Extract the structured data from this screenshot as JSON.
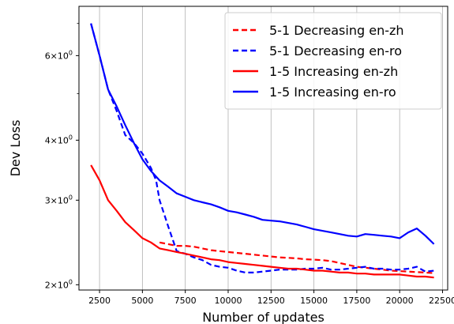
{
  "chart_data": {
    "type": "line",
    "xlabel": "Number of updates",
    "ylabel": "Dev Loss",
    "xlim": [
      1300,
      22800
    ],
    "ylim": [
      1.95,
      7.6
    ],
    "yscale": "log",
    "grid": "vertical",
    "legend_position": "top-right",
    "xticks": [
      {
        "value": 2500,
        "label": "2500"
      },
      {
        "value": 5000,
        "label": "5000"
      },
      {
        "value": 7500,
        "label": "7500"
      },
      {
        "value": 10000,
        "label": "10000"
      },
      {
        "value": 12500,
        "label": "12500"
      },
      {
        "value": 15000,
        "label": "15000"
      },
      {
        "value": 17500,
        "label": "17500"
      },
      {
        "value": 20000,
        "label": "20000"
      },
      {
        "value": 22500,
        "label": "22500"
      }
    ],
    "yticks": [
      {
        "value": 2,
        "base": "2×10",
        "exp": "0"
      },
      {
        "value": 3,
        "base": "3×10",
        "exp": "0"
      },
      {
        "value": 4,
        "base": "4×10",
        "exp": "0"
      },
      {
        "value": 6,
        "base": "6×10",
        "exp": "0"
      }
    ],
    "series": [
      {
        "name": "5-1 Decreasing en-zh",
        "color": "#ff0000",
        "dash": "dashed",
        "x": [
          6000,
          6500,
          7000,
          7500,
          8000,
          8500,
          9000,
          9500,
          10000,
          10500,
          11000,
          11500,
          12000,
          12500,
          13000,
          13500,
          14000,
          14500,
          15000,
          15500,
          16000,
          16500,
          17000,
          17500,
          18000,
          18500,
          19000,
          19500,
          20000,
          20500,
          21000,
          21500,
          22000
        ],
        "y": [
          2.45,
          2.43,
          2.41,
          2.41,
          2.4,
          2.38,
          2.36,
          2.35,
          2.34,
          2.33,
          2.32,
          2.31,
          2.3,
          2.29,
          2.28,
          2.275,
          2.27,
          2.26,
          2.255,
          2.25,
          2.24,
          2.22,
          2.2,
          2.18,
          2.17,
          2.16,
          2.15,
          2.14,
          2.135,
          2.13,
          2.125,
          2.12,
          2.115
        ]
      },
      {
        "name": "5-1 Decreasing en-ro",
        "color": "#0000ff",
        "dash": "dashed",
        "x": [
          2000,
          2500,
          3000,
          3500,
          4000,
          4500,
          5000,
          5500,
          5800,
          6000,
          6500,
          7000,
          7500,
          8000,
          8500,
          9000,
          9500,
          10000,
          10500,
          11000,
          11500,
          12000,
          12500,
          13000,
          13500,
          14000,
          14500,
          15000,
          15500,
          16000,
          16500,
          17000,
          17500,
          18000,
          18500,
          19000,
          19500,
          20000,
          20500,
          21000,
          21500,
          22000
        ],
        "y": [
          7.0,
          6.0,
          5.1,
          4.6,
          4.1,
          3.95,
          3.75,
          3.5,
          3.3,
          3.0,
          2.65,
          2.35,
          2.32,
          2.28,
          2.25,
          2.2,
          2.18,
          2.17,
          2.14,
          2.12,
          2.12,
          2.13,
          2.14,
          2.15,
          2.15,
          2.15,
          2.16,
          2.16,
          2.17,
          2.15,
          2.15,
          2.16,
          2.17,
          2.18,
          2.16,
          2.16,
          2.15,
          2.15,
          2.16,
          2.18,
          2.13,
          2.14
        ]
      },
      {
        "name": "1-5 Increasing en-zh",
        "color": "#ff0000",
        "dash": "solid",
        "x": [
          2000,
          2500,
          3000,
          3500,
          4000,
          4500,
          5000,
          5500,
          6000,
          6500,
          7000,
          7500,
          8000,
          8500,
          9000,
          9500,
          10000,
          10500,
          11000,
          11500,
          12000,
          12500,
          13000,
          13500,
          14000,
          14500,
          15000,
          15500,
          16000,
          16500,
          17000,
          17500,
          18000,
          18500,
          19000,
          19500,
          20000,
          20500,
          21000,
          21500,
          22000
        ],
        "y": [
          3.55,
          3.3,
          3.0,
          2.85,
          2.7,
          2.6,
          2.5,
          2.45,
          2.38,
          2.36,
          2.34,
          2.32,
          2.3,
          2.28,
          2.26,
          2.25,
          2.23,
          2.22,
          2.21,
          2.2,
          2.19,
          2.18,
          2.17,
          2.16,
          2.16,
          2.15,
          2.14,
          2.14,
          2.13,
          2.12,
          2.12,
          2.11,
          2.11,
          2.1,
          2.1,
          2.1,
          2.1,
          2.09,
          2.08,
          2.08,
          2.07
        ]
      },
      {
        "name": "1-5 Increasing en-ro",
        "color": "#0000ff",
        "dash": "solid",
        "x": [
          2000,
          2500,
          3000,
          3500,
          4000,
          4500,
          5000,
          5500,
          6000,
          6500,
          7000,
          7500,
          8000,
          8500,
          9000,
          9500,
          10000,
          10500,
          11000,
          11500,
          12000,
          12500,
          13000,
          13500,
          14000,
          14500,
          15000,
          15500,
          16000,
          16500,
          17000,
          17500,
          18000,
          18500,
          19000,
          19500,
          20000,
          20500,
          21000,
          21500,
          22000
        ],
        "y": [
          7.0,
          6.0,
          5.1,
          4.7,
          4.3,
          3.95,
          3.65,
          3.45,
          3.3,
          3.2,
          3.1,
          3.05,
          3.0,
          2.97,
          2.94,
          2.9,
          2.85,
          2.83,
          2.8,
          2.77,
          2.73,
          2.72,
          2.71,
          2.69,
          2.67,
          2.64,
          2.61,
          2.59,
          2.57,
          2.55,
          2.53,
          2.52,
          2.55,
          2.54,
          2.53,
          2.52,
          2.5,
          2.57,
          2.62,
          2.53,
          2.43
        ]
      }
    ]
  }
}
